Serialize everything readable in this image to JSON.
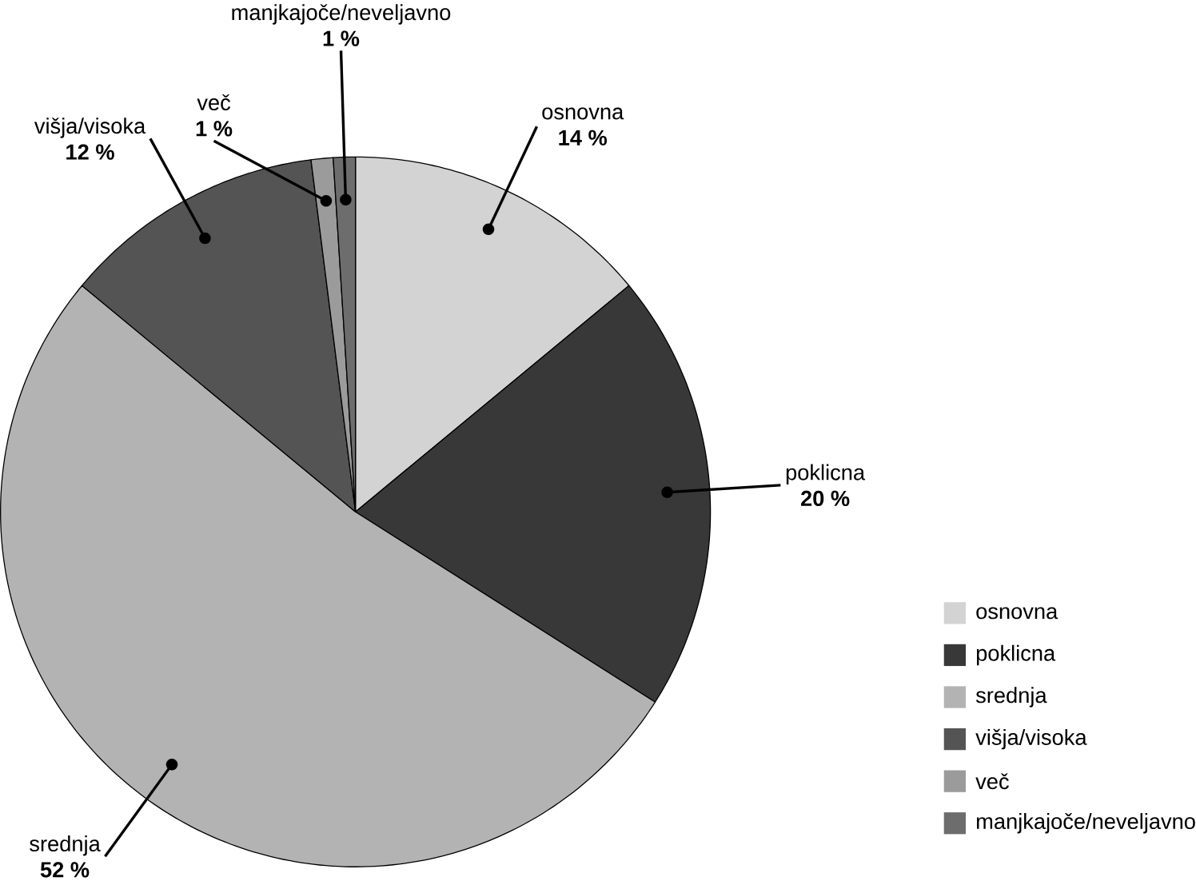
{
  "chart_data": {
    "type": "pie",
    "categories": [
      "osnovna",
      "poklicna",
      "srednja",
      "višja/visoka",
      "več",
      "manjkajoče/neveljavno"
    ],
    "values": [
      14,
      20,
      52,
      12,
      1,
      1
    ],
    "colors": [
      "#d3d3d3",
      "#383838",
      "#b3b3b3",
      "#545454",
      "#9b9b9b",
      "#6d6d6d"
    ],
    "value_labels": [
      "14 %",
      "20 %",
      "52 %",
      "12 %",
      "1 %",
      "1 %"
    ],
    "legend": "bottom right"
  }
}
